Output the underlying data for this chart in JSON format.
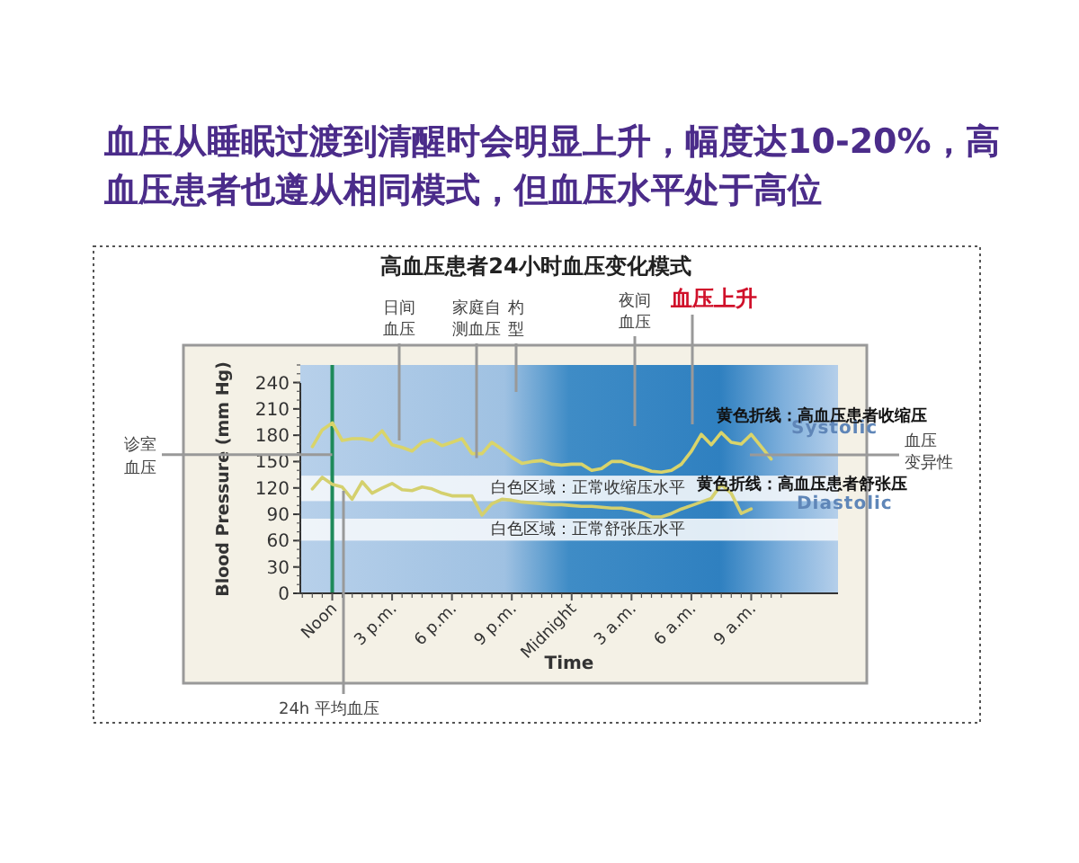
{
  "chart_data": {
    "type": "line",
    "title": "血压从睡眠过渡到清醒时会明显上升，幅度达10-20%，高血压患者也遵从相同模式，但血压水平处于高位",
    "subtitle": "高血压患者24小时血压变化模式",
    "xlabel": "Time",
    "ylabel": "Blood Pressure (mm Hg)",
    "categories": [
      null,
      null,
      null,
      "Noon",
      null,
      null,
      null,
      null,
      null,
      "3 p.m.",
      null,
      null,
      null,
      null,
      null,
      "6 p.m.",
      null,
      null,
      null,
      null,
      null,
      "9 p.m.",
      null,
      null,
      null,
      null,
      null,
      "Midnight",
      null,
      null,
      null,
      null,
      null,
      "3 a.m.",
      null,
      null,
      null,
      null,
      null,
      "6 a.m.",
      null,
      null,
      null,
      null,
      null,
      "9 a.m.",
      null,
      null,
      null
    ],
    "ylim": [
      0,
      260
    ],
    "yticks": [
      0,
      30,
      60,
      90,
      120,
      150,
      180,
      210,
      240
    ],
    "series": [
      {
        "name": "Systolic",
        "color": "#d9d46a",
        "values": [
          null,
          167,
          186,
          194,
          174,
          176,
          176,
          174,
          185,
          169,
          166,
          162,
          172,
          175,
          168,
          172,
          176,
          159,
          159,
          172,
          164,
          155,
          148,
          150,
          151,
          147,
          146,
          147,
          147,
          140,
          142,
          150,
          150,
          146,
          143,
          139,
          138,
          140,
          147,
          162,
          181,
          169,
          183,
          172,
          170,
          181,
          167,
          153,
          null
        ]
      },
      {
        "name": "Diastolic",
        "color": "#d4d06e",
        "values": [
          null,
          119,
          132,
          124,
          121,
          107,
          127,
          114,
          120,
          125,
          118,
          117,
          121,
          119,
          114,
          111,
          111,
          111,
          89,
          102,
          107,
          106,
          104,
          103,
          102,
          101,
          101,
          100,
          99,
          99,
          98,
          97,
          97,
          95,
          92,
          87,
          87,
          91,
          96,
          100,
          104,
          108,
          124,
          114,
          91,
          96,
          null,
          null,
          null
        ]
      }
    ],
    "bands": [
      {
        "axis": "y",
        "from": 105,
        "to": 134,
        "label": "白色区域：正常收缩压水平",
        "color": "#f4f7fb"
      },
      {
        "axis": "y",
        "from": 60,
        "to": 85,
        "label": "白色区域：正常舒张压水平",
        "color": "#f4f7fb"
      }
    ],
    "ref_lines": [
      {
        "axis": "x",
        "value": "Noon",
        "color": "#1e8a5a"
      }
    ],
    "annotations": [
      {
        "text": "日间血压",
        "y": 174
      },
      {
        "text": "家庭自测血压",
        "y": 154
      },
      "杓型",
      "夜间血压",
      "血压上升",
      {
        "text": "诊室血压",
        "x": "Noon",
        "y": 158
      },
      "血压变异性",
      "24h 平均血压",
      "黄色折线：高血压患者收缩压",
      "黄色折线：高血压患者舒张压"
    ],
    "legend": false,
    "marker": "none",
    "line_style": "solid"
  }
}
